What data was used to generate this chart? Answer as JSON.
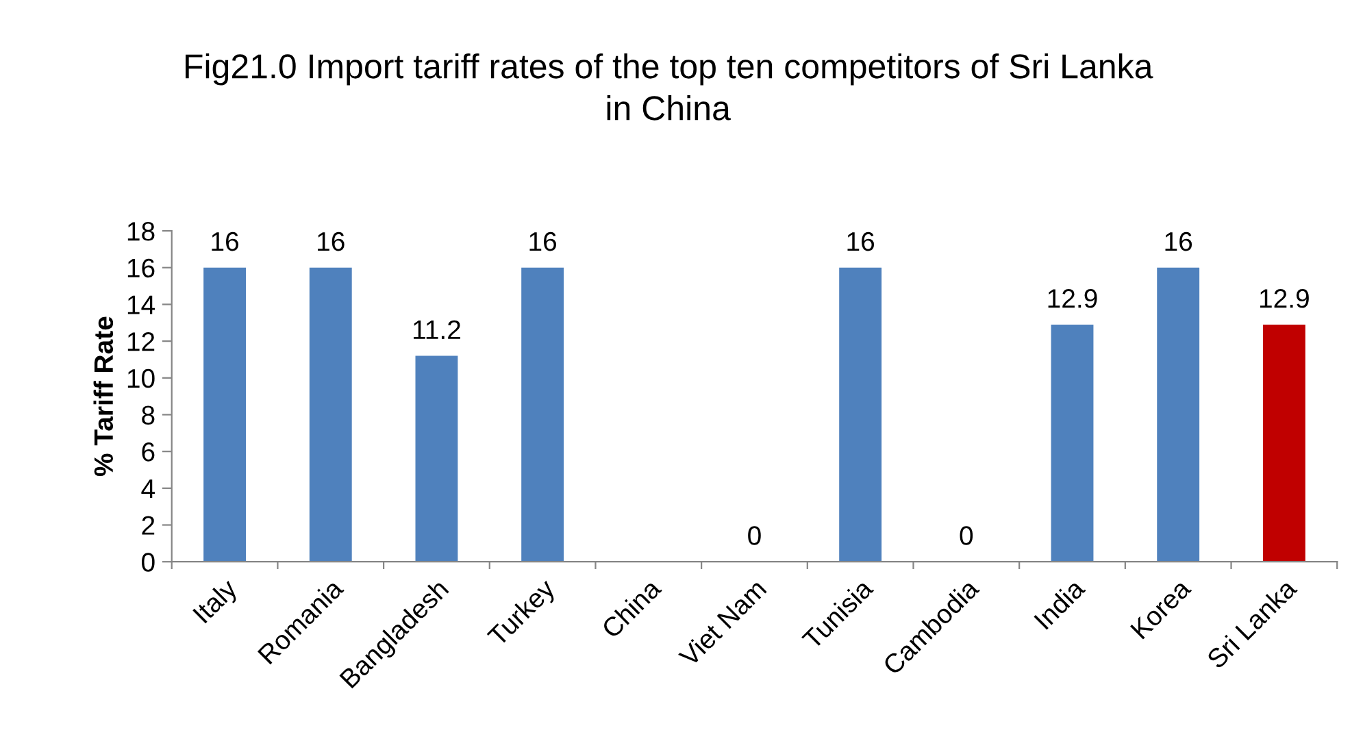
{
  "chart_data": {
    "type": "bar",
    "title": "Fig21.0 Import tariff rates of the top ten competitors of Sri Lanka\nin China",
    "ylabel": "% Tariff Rate",
    "categories": [
      "Italy",
      "Romania",
      "Bangladesh",
      "Turkey",
      "China",
      "Viet Nam",
      "Tunisia",
      "Cambodia",
      "India",
      "Korea",
      "Sri Lanka"
    ],
    "values": [
      16,
      16,
      11.2,
      16,
      null,
      0,
      16,
      0,
      12.9,
      16,
      12.9
    ],
    "value_labels": [
      "16",
      "16",
      "11.2",
      "16",
      null,
      "0",
      "16",
      "0",
      "12.9",
      "16",
      "12.9"
    ],
    "colors": [
      "#4f81bd",
      "#4f81bd",
      "#4f81bd",
      "#4f81bd",
      "#4f81bd",
      "#4f81bd",
      "#4f81bd",
      "#4f81bd",
      "#4f81bd",
      "#4f81bd",
      "#c00000"
    ],
    "ylim": [
      0,
      18
    ],
    "yticks": [
      0,
      2,
      4,
      6,
      8,
      10,
      12,
      14,
      16,
      18
    ],
    "grid": false
  }
}
